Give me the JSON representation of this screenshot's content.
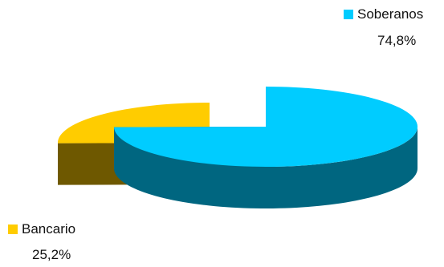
{
  "chart_data": {
    "type": "pie",
    "style": "3d-exploded",
    "slices": [
      {
        "label": "Soberanos",
        "value": 74.8,
        "value_label": "74,8%",
        "color": "#00CCFF",
        "side_color": "#006680",
        "wall_color": "#005E78"
      },
      {
        "label": "Bancario",
        "value": 25.2,
        "value_label": "25,2%",
        "color": "#FFCC00",
        "side_color": "#806600",
        "wall_color": "#6E5800"
      }
    ],
    "legend_placement": "beside-slices"
  }
}
